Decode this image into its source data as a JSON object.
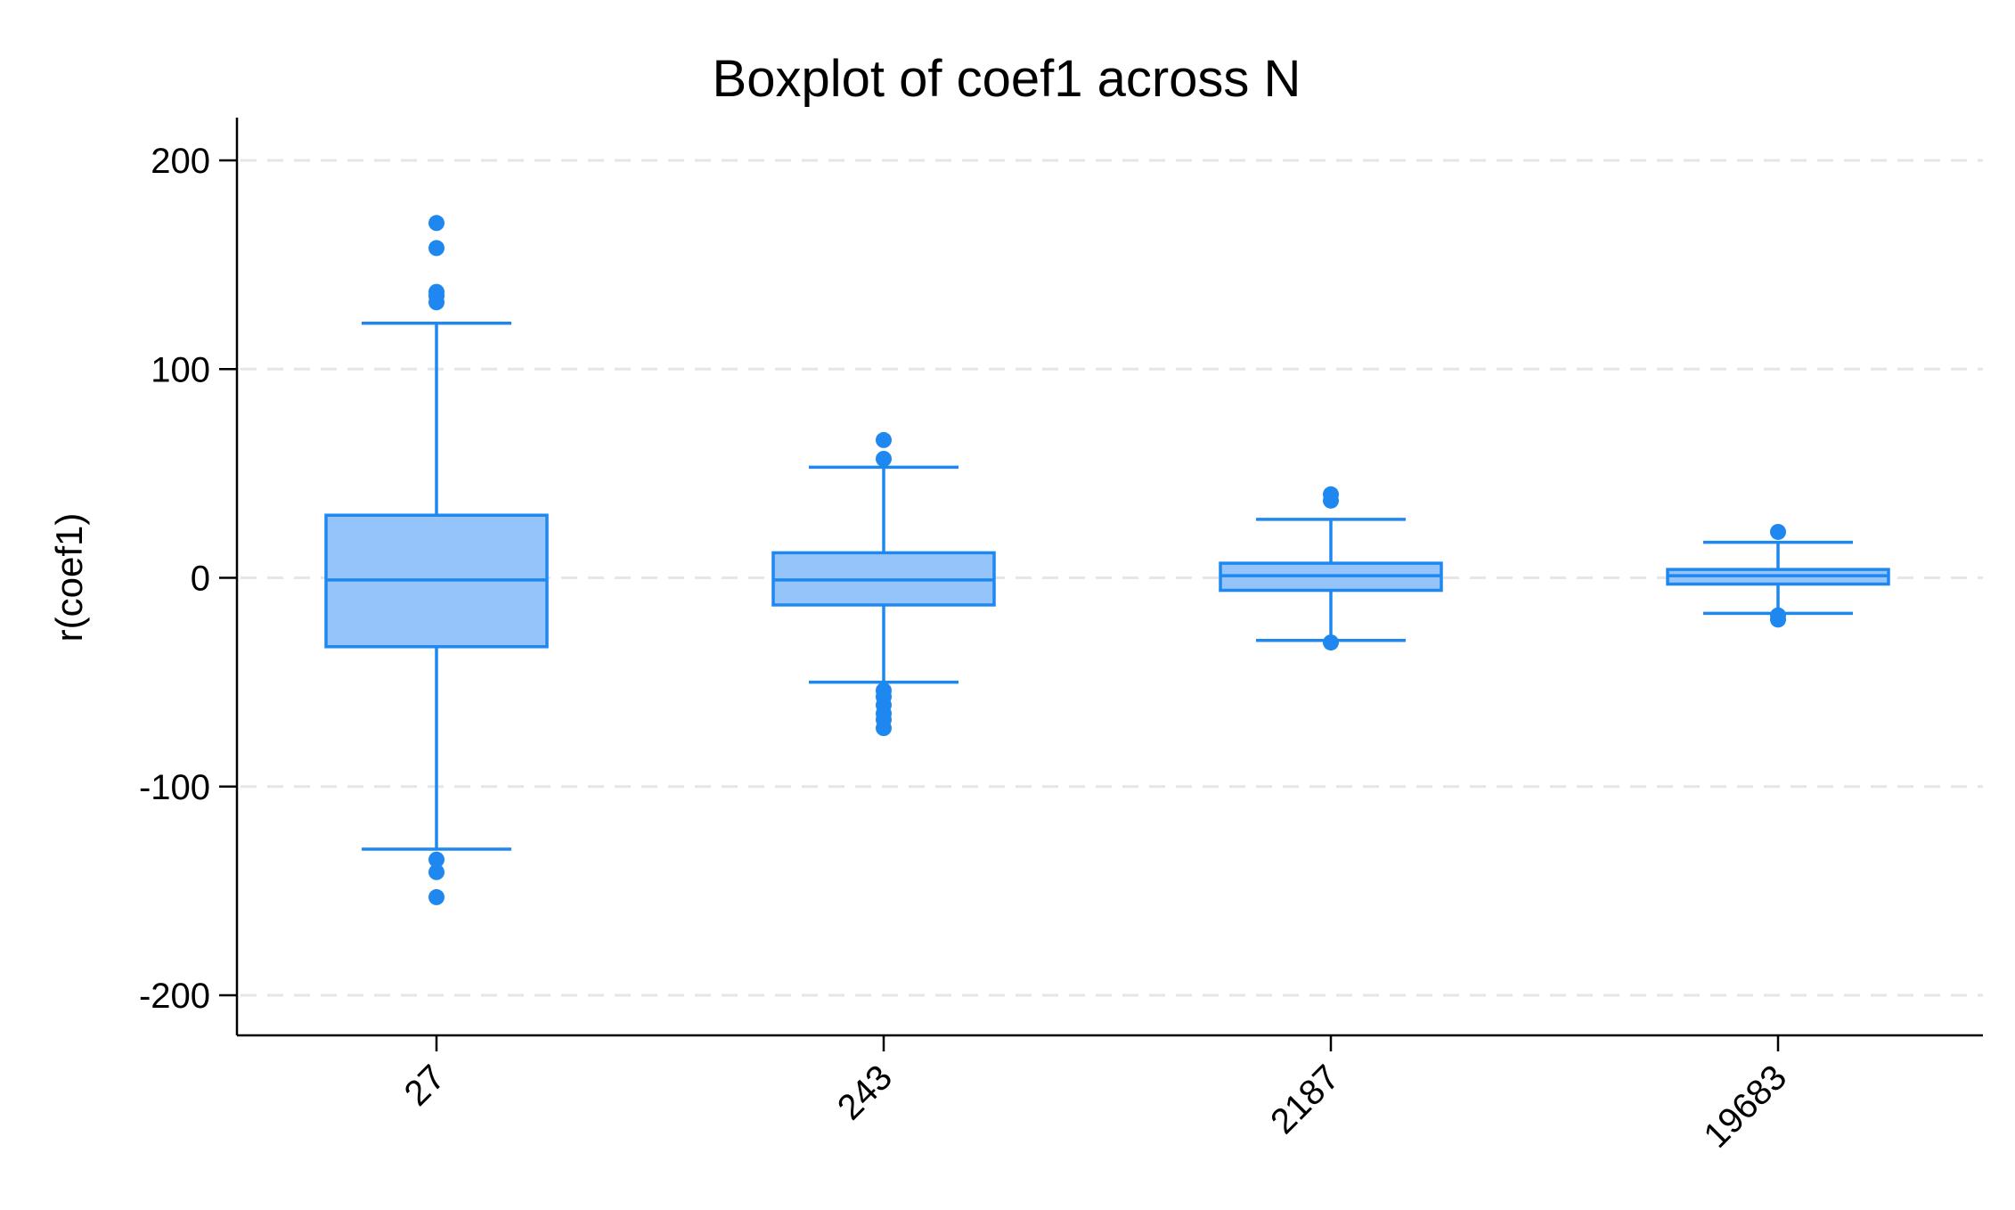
{
  "chart_data": {
    "type": "box",
    "title": "Boxplot of coef1 across N",
    "xlabel": "",
    "ylabel": "r(coef1)",
    "categories": [
      "27",
      "243",
      "2187",
      "19683"
    ],
    "yticks": [
      -200,
      -100,
      0,
      100,
      200
    ],
    "ytick_labels": [
      "-200",
      "-100",
      "0",
      "100",
      "200"
    ],
    "ylim": [
      -220,
      220
    ],
    "grid": true,
    "legend": "none",
    "colors": {
      "box_fill": "#94c4fa",
      "box_stroke": "#1e88f0",
      "outlier": "#1e88f0"
    },
    "boxes": [
      {
        "category": "27",
        "whisker_low": -130,
        "q1": -33,
        "median": -1,
        "q3": 30,
        "whisker_high": 122,
        "outliers": [
          170,
          158,
          137,
          135,
          132,
          -135,
          -141,
          -153
        ]
      },
      {
        "category": "243",
        "whisker_low": -50,
        "q1": -13,
        "median": -1,
        "q3": 12,
        "whisker_high": 53,
        "outliers": [
          66,
          57,
          -54,
          -57,
          -61,
          -65,
          -68,
          -72
        ]
      },
      {
        "category": "2187",
        "whisker_low": -30,
        "q1": -6,
        "median": 1,
        "q3": 7,
        "whisker_high": 28,
        "outliers": [
          40,
          37,
          -31
        ]
      },
      {
        "category": "19683",
        "whisker_low": -17,
        "q1": -3,
        "median": 1,
        "q3": 4,
        "whisker_high": 17,
        "outliers": [
          22,
          -18,
          -20
        ]
      }
    ]
  }
}
